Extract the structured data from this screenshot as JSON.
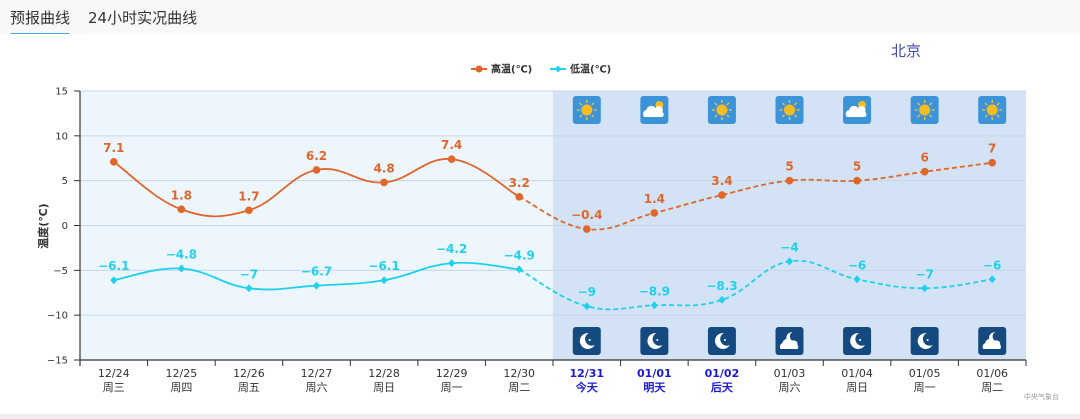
{
  "tabs": [
    {
      "label": "预报曲线",
      "active": true
    },
    {
      "label": "24小时实况曲线",
      "active": false
    }
  ],
  "city": "北京",
  "source": "中央气象台",
  "colors": {
    "high": "#e0662a",
    "low": "#1fd0ef",
    "past_bg": "#eef6fd",
    "future_bg": "#d3e3f5",
    "today_label": "#1a1adb",
    "axis_label": "#333333"
  },
  "chart_data": {
    "type": "line",
    "title": "",
    "xlabel": "",
    "ylabel": "温度(℃)",
    "ylim": [
      -15,
      15
    ],
    "yticks": [
      15,
      10,
      5,
      0,
      -5,
      -10,
      -15
    ],
    "grid": true,
    "legend_position": "top",
    "categories": [
      "12/24",
      "12/25",
      "12/26",
      "12/27",
      "12/28",
      "12/29",
      "12/30",
      "12/31",
      "01/01",
      "01/02",
      "01/03",
      "01/04",
      "01/05",
      "01/06"
    ],
    "day_labels": [
      "周三",
      "周四",
      "周五",
      "周六",
      "周日",
      "周一",
      "周二",
      "今天",
      "明天",
      "后天",
      "周六",
      "周日",
      "周一",
      "周二"
    ],
    "highlight_indices": [
      7,
      8,
      9
    ],
    "forecast_start_index": 7,
    "series": [
      {
        "name": "高温(℃)",
        "values": [
          7.1,
          1.8,
          1.7,
          6.2,
          4.8,
          7.4,
          3.2,
          -0.4,
          1.4,
          3.4,
          5,
          5,
          6,
          7
        ],
        "labels": [
          "7.1",
          "1.8",
          "1.7",
          "6.2",
          "4.8",
          "7.4",
          "3.2",
          "−0.4",
          "1.4",
          "3.4",
          "5",
          "5",
          "6",
          "7"
        ]
      },
      {
        "name": "低温(℃)",
        "values": [
          -6.1,
          -4.8,
          -7,
          -6.7,
          -6.1,
          -4.2,
          -4.9,
          -9,
          -8.9,
          -8.3,
          -4,
          -6,
          -7,
          -6
        ],
        "labels": [
          "−6.1",
          "−4.8",
          "−7",
          "−6.7",
          "−6.1",
          "−4.2",
          "−4.9",
          "−9",
          "−8.9",
          "−8.3",
          "−4",
          "−6",
          "−7",
          "−6"
        ]
      }
    ],
    "day_icons": [
      "sunny",
      "partly-cloudy",
      "sunny",
      "sunny",
      "partly-cloudy",
      "sunny",
      "sunny"
    ],
    "night_icons": [
      "clear-night",
      "clear-night",
      "clear-night",
      "cloudy-night",
      "clear-night",
      "clear-night",
      "cloudy-night"
    ]
  }
}
